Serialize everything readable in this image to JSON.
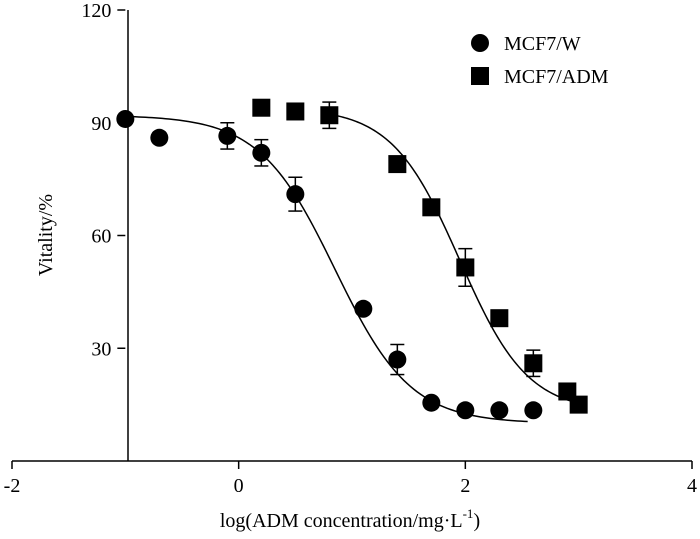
{
  "chart_data": {
    "type": "scatter",
    "title": "",
    "xlabel_main": "log(ADM concentration/mg·L",
    "xlabel_sup": "-1",
    "xlabel_close": ")",
    "ylabel": "Vitality/%",
    "xlim": [
      -2,
      4
    ],
    "ylim": [
      0,
      120
    ],
    "xticks": [
      -2,
      0,
      2,
      4
    ],
    "xtick_labels": [
      "-2",
      "0",
      "2",
      "4"
    ],
    "yticks": [
      30,
      60,
      90,
      120
    ],
    "ytick_labels": [
      "30",
      "60",
      "90",
      "120"
    ],
    "legend_position": "top-right",
    "series": [
      {
        "name": "MCF7/W",
        "marker": "circle",
        "points": [
          {
            "x": -1.0,
            "y": 91,
            "err": 0
          },
          {
            "x": -0.7,
            "y": 86,
            "err": 0
          },
          {
            "x": -0.1,
            "y": 86.5,
            "err": 3.5
          },
          {
            "x": 0.2,
            "y": 82,
            "err": 3.5
          },
          {
            "x": 0.5,
            "y": 71,
            "err": 4.5
          },
          {
            "x": 1.1,
            "y": 40.5,
            "err": 0
          },
          {
            "x": 1.4,
            "y": 27,
            "err": 4
          },
          {
            "x": 1.7,
            "y": 15.5,
            "err": 0
          },
          {
            "x": 2.0,
            "y": 13.5,
            "err": 0
          },
          {
            "x": 2.3,
            "y": 13.5,
            "err": 0
          },
          {
            "x": 2.6,
            "y": 13.5,
            "err": 0
          }
        ],
        "fit_curve": {
          "top": 92,
          "bottom": 10,
          "ec50_log": 0.85,
          "hill": 1.3,
          "x_from": -1.0,
          "x_to": 2.55
        }
      },
      {
        "name": "MCF7/ADM",
        "marker": "square",
        "points": [
          {
            "x": 0.2,
            "y": 94,
            "err": 0
          },
          {
            "x": 0.5,
            "y": 93,
            "err": 0
          },
          {
            "x": 0.8,
            "y": 92,
            "err": 3.5
          },
          {
            "x": 1.4,
            "y": 79,
            "err": 0
          },
          {
            "x": 1.7,
            "y": 67.5,
            "err": 0
          },
          {
            "x": 2.0,
            "y": 51.5,
            "err": 5
          },
          {
            "x": 2.3,
            "y": 38,
            "err": 0
          },
          {
            "x": 2.6,
            "y": 26,
            "err": 3.5
          },
          {
            "x": 2.9,
            "y": 18.5,
            "err": 0
          },
          {
            "x": 3.0,
            "y": 15,
            "err": 2
          }
        ],
        "fit_curve": {
          "top": 94,
          "bottom": 13,
          "ec50_log": 1.95,
          "hill": 1.45,
          "x_from": 0.8,
          "x_to": 2.95
        }
      }
    ]
  }
}
